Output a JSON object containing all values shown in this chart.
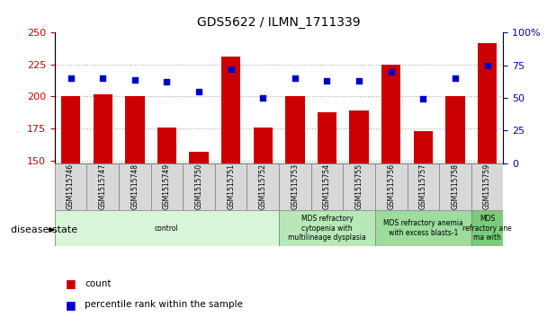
{
  "title": "GDS5622 / ILMN_1711339",
  "samples": [
    "GSM1515746",
    "GSM1515747",
    "GSM1515748",
    "GSM1515749",
    "GSM1515750",
    "GSM1515751",
    "GSM1515752",
    "GSM1515753",
    "GSM1515754",
    "GSM1515755",
    "GSM1515756",
    "GSM1515757",
    "GSM1515758",
    "GSM1515759"
  ],
  "counts": [
    200,
    202,
    200,
    176,
    157,
    231,
    176,
    200,
    188,
    189,
    225,
    173,
    200,
    242
  ],
  "percentiles": [
    65,
    65,
    64,
    62,
    55,
    72,
    50,
    65,
    63,
    63,
    70,
    49,
    65,
    75
  ],
  "ylim_left": [
    148,
    250
  ],
  "ylim_right": [
    0,
    100
  ],
  "yticks_left": [
    150,
    175,
    200,
    225,
    250
  ],
  "yticks_right": [
    0,
    25,
    50,
    75,
    100
  ],
  "bar_color": "#cc0000",
  "dot_color": "#0000cc",
  "bar_width": 0.6,
  "baseline": 148,
  "disease_groups": [
    {
      "label": "control",
      "start": 0,
      "end": 6,
      "color": "#d9f5d9"
    },
    {
      "label": "MDS refractory\ncytopenia with\nmultilineage dysplasia",
      "start": 7,
      "end": 9,
      "color": "#b8e8b8"
    },
    {
      "label": "MDS refractory anemia\nwith excess blasts-1",
      "start": 10,
      "end": 12,
      "color": "#9ddc9d"
    },
    {
      "label": "MDS\nrefractory ane\nma with",
      "start": 13,
      "end": 13,
      "color": "#7acc7a"
    }
  ],
  "legend_count_label": "count",
  "legend_pct_label": "percentile rank within the sample",
  "disease_state_label": "disease state",
  "bg_color": "#ffffff",
  "tick_color_left": "#cc0000",
  "tick_color_right": "#0000cc",
  "grid_color": "#aaaaaa",
  "sample_box_color": "#d8d8d8",
  "sample_box_edge": "#888888"
}
